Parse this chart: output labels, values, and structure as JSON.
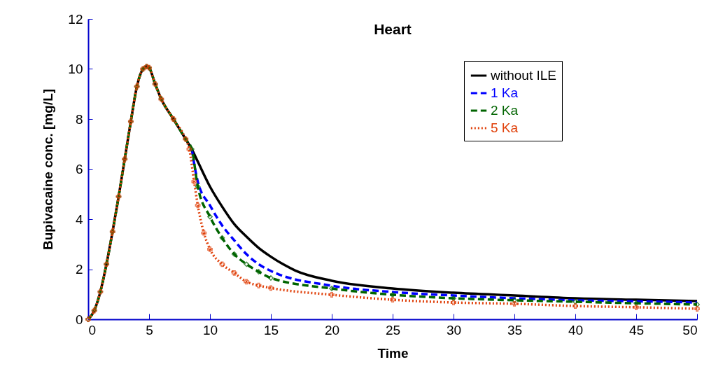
{
  "chart_data": {
    "type": "line",
    "title": "Heart",
    "xlabel": "Time",
    "ylabel": "Bupivacaine conc. [mg/L]",
    "xlim": [
      0,
      50
    ],
    "xticks": [
      0,
      5,
      10,
      15,
      20,
      25,
      30,
      35,
      40,
      45,
      50
    ],
    "ylim": [
      0,
      12
    ],
    "yticks": [
      0,
      2,
      4,
      6,
      8,
      10,
      12
    ],
    "grid": false,
    "legend": "top right",
    "series": [
      {
        "name": "without ILE",
        "color": "#000000",
        "line_style": "solid",
        "marker": "none",
        "x": [
          0,
          0.5,
          1,
          1.5,
          2,
          2.5,
          3,
          3.5,
          4,
          4.5,
          4.8,
          5,
          5.5,
          6,
          7,
          8,
          8.5,
          9,
          10,
          11,
          12,
          13,
          14,
          15,
          16,
          17,
          20,
          25,
          30,
          35,
          40,
          45,
          50
        ],
        "values": [
          0,
          0.35,
          1.1,
          2.2,
          3.5,
          4.9,
          6.4,
          7.9,
          9.3,
          10,
          10.1,
          10.05,
          9.4,
          8.8,
          8,
          7.2,
          6.8,
          6.3,
          5.3,
          4.5,
          3.8,
          3.3,
          2.85,
          2.5,
          2.2,
          1.95,
          1.54,
          1.23,
          1.06,
          0.95,
          0.84,
          0.78,
          0.73
        ]
      },
      {
        "name": "1 Ka",
        "color": "#0000ff",
        "line_style": "dashed",
        "marker": "none",
        "x": [
          8.5,
          9,
          10,
          11,
          12,
          13,
          14,
          15,
          20,
          25,
          30,
          35,
          40,
          45,
          50
        ],
        "values": [
          6.8,
          5.5,
          4.55,
          3.75,
          3.15,
          2.6,
          2.2,
          1.93,
          1.34,
          1.09,
          0.95,
          0.84,
          0.76,
          0.72,
          0.67
        ]
      },
      {
        "name": "2 Ka",
        "color": "#006400",
        "line_style": "dashed",
        "marker": "diamond",
        "x": [
          0,
          0.5,
          1,
          1.5,
          2,
          2.5,
          3,
          3.5,
          4,
          4.5,
          4.8,
          5,
          5.5,
          6,
          7,
          8,
          8.5,
          9,
          10,
          11,
          12,
          13,
          14,
          15,
          20,
          25,
          30,
          35,
          40,
          45,
          50
        ],
        "values": [
          0,
          0.35,
          1.1,
          2.2,
          3.5,
          4.9,
          6.4,
          7.9,
          9.3,
          10,
          10.1,
          10.05,
          9.4,
          8.8,
          8,
          7.2,
          6.8,
          5.3,
          4.1,
          3.25,
          2.6,
          2.2,
          1.9,
          1.65,
          1.23,
          0.98,
          0.84,
          0.76,
          0.7,
          0.64,
          0.59
        ]
      },
      {
        "name": "5 Ka",
        "color": "#e0400a",
        "line_style": "dotted",
        "marker": "cross",
        "x": [
          0,
          0.5,
          1,
          1.5,
          2,
          2.5,
          3,
          3.5,
          4,
          4.5,
          4.8,
          5,
          5.5,
          6,
          7,
          8,
          8.3,
          8.7,
          9,
          9.5,
          10,
          11,
          12,
          13,
          14,
          15,
          20,
          25,
          30,
          35,
          40,
          45,
          50
        ],
        "values": [
          0,
          0.35,
          1.1,
          2.2,
          3.5,
          4.9,
          6.4,
          7.9,
          9.3,
          10,
          10.1,
          10.05,
          9.4,
          8.8,
          8,
          7.2,
          6.8,
          5.5,
          4.55,
          3.45,
          2.8,
          2.2,
          1.85,
          1.5,
          1.35,
          1.25,
          0.98,
          0.78,
          0.67,
          0.62,
          0.53,
          0.48,
          0.42
        ]
      }
    ]
  }
}
